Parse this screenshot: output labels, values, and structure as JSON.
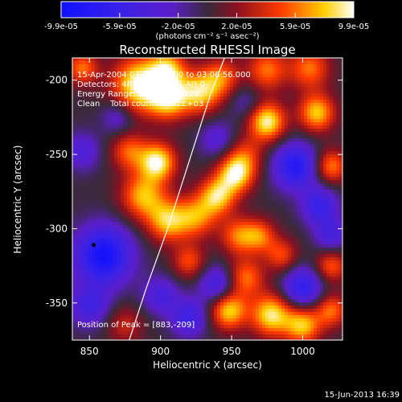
{
  "colorbar": {
    "tick_labels": [
      "-9.9e-05",
      "-5.9e-05",
      "-2.0e-05",
      "2.0e-05",
      "5.9e-05",
      "9.9e-05"
    ],
    "range": [
      -9.9e-05,
      9.9e-05
    ],
    "units_label": "(photons cm⁻² s⁻¹ asec⁻²)",
    "colors": [
      "#1010ff",
      "#5a1ec8",
      "#3a2a3a",
      "#9a1020",
      "#ff3a00",
      "#ffd000",
      "#ffffff"
    ]
  },
  "chart_data": {
    "type": "heatmap",
    "title": "Reconstructed RHESSI Image",
    "xlabel": "Heliocentric X (arcsec)",
    "ylabel": "Heliocentric Y (arcsec)",
    "xlim": [
      838,
      1028
    ],
    "ylim": [
      -375,
      -185
    ],
    "x_ticks": [
      850,
      900,
      950,
      1000
    ],
    "y_ticks": [
      -200,
      -250,
      -300,
      -350
    ],
    "grid": false,
    "annotations": [
      "15-Apr-2004 03:02:18.000 to 03:06:56.000",
      "Detectors: 4F 5F 6F 7F 8F, Att 0",
      "Energy Range: 12.0 - 25.0 keV",
      "Clean    Total counts: 4.82E+03"
    ],
    "peak_label": "Position of Peak = [883,-209]",
    "peak_position": [
      883,
      -209
    ],
    "marker_point": [
      853,
      -311
    ],
    "limb_curve": [
      [
        878,
        -375
      ],
      [
        890,
        -340
      ],
      [
        905,
        -300
      ],
      [
        920,
        -255
      ],
      [
        935,
        -210
      ],
      [
        945,
        -185
      ]
    ],
    "blobs": [
      {
        "x": 845,
        "y": -192,
        "v": 0.6,
        "s": 8
      },
      {
        "x": 885,
        "y": -203,
        "v": 1.0,
        "s": 13
      },
      {
        "x": 906,
        "y": -212,
        "v": 0.85,
        "s": 10
      },
      {
        "x": 905,
        "y": -192,
        "v": 0.7,
        "s": 9
      },
      {
        "x": 928,
        "y": -208,
        "v": 0.8,
        "s": 10
      },
      {
        "x": 943,
        "y": -198,
        "v": 0.55,
        "s": 9
      },
      {
        "x": 975,
        "y": -193,
        "v": 0.6,
        "s": 10
      },
      {
        "x": 1005,
        "y": -192,
        "v": 0.6,
        "s": 10
      },
      {
        "x": 975,
        "y": -228,
        "v": 0.95,
        "s": 9
      },
      {
        "x": 1010,
        "y": -222,
        "v": 0.8,
        "s": 9
      },
      {
        "x": 1020,
        "y": -258,
        "v": 0.65,
        "s": 8
      },
      {
        "x": 960,
        "y": -250,
        "v": 0.4,
        "s": 9
      },
      {
        "x": 878,
        "y": -248,
        "v": 0.55,
        "s": 9
      },
      {
        "x": 898,
        "y": -255,
        "v": 0.95,
        "s": 9
      },
      {
        "x": 888,
        "y": -278,
        "v": 0.75,
        "s": 11
      },
      {
        "x": 905,
        "y": -295,
        "v": 0.75,
        "s": 10
      },
      {
        "x": 925,
        "y": -292,
        "v": 0.65,
        "s": 10
      },
      {
        "x": 940,
        "y": -278,
        "v": 0.8,
        "s": 9
      },
      {
        "x": 953,
        "y": -263,
        "v": 0.9,
        "s": 9
      },
      {
        "x": 920,
        "y": -322,
        "v": 0.5,
        "s": 8
      },
      {
        "x": 955,
        "y": -305,
        "v": 0.6,
        "s": 9
      },
      {
        "x": 970,
        "y": -305,
        "v": 0.55,
        "s": 8
      },
      {
        "x": 985,
        "y": -318,
        "v": 0.5,
        "s": 8
      },
      {
        "x": 960,
        "y": -333,
        "v": 0.6,
        "s": 9
      },
      {
        "x": 1020,
        "y": -325,
        "v": 0.55,
        "s": 8
      },
      {
        "x": 948,
        "y": -355,
        "v": 0.85,
        "s": 9
      },
      {
        "x": 978,
        "y": -358,
        "v": 0.9,
        "s": 10
      },
      {
        "x": 1000,
        "y": -365,
        "v": 0.8,
        "s": 9
      },
      {
        "x": 1020,
        "y": -355,
        "v": 0.6,
        "s": 8
      },
      {
        "x": 875,
        "y": -365,
        "v": 0.35,
        "s": 9
      },
      {
        "x": 860,
        "y": -318,
        "v": -0.95,
        "s": 14
      },
      {
        "x": 850,
        "y": -352,
        "v": -0.5,
        "s": 10
      },
      {
        "x": 845,
        "y": -248,
        "v": -0.4,
        "s": 9
      },
      {
        "x": 870,
        "y": -225,
        "v": -0.35,
        "s": 8
      },
      {
        "x": 940,
        "y": -240,
        "v": -0.35,
        "s": 9
      },
      {
        "x": 995,
        "y": -258,
        "v": -0.8,
        "s": 11
      },
      {
        "x": 1012,
        "y": -285,
        "v": -0.6,
        "s": 9
      },
      {
        "x": 1000,
        "y": -340,
        "v": -0.7,
        "s": 10
      },
      {
        "x": 1020,
        "y": -305,
        "v": -0.45,
        "s": 8
      },
      {
        "x": 940,
        "y": -338,
        "v": -0.55,
        "s": 9
      },
      {
        "x": 920,
        "y": -360,
        "v": -0.55,
        "s": 9
      },
      {
        "x": 900,
        "y": -345,
        "v": -0.45,
        "s": 9
      },
      {
        "x": 960,
        "y": -215,
        "v": -0.25,
        "s": 8
      }
    ]
  },
  "footer": {
    "timestamp": "15-Jun-2013 16:39"
  }
}
